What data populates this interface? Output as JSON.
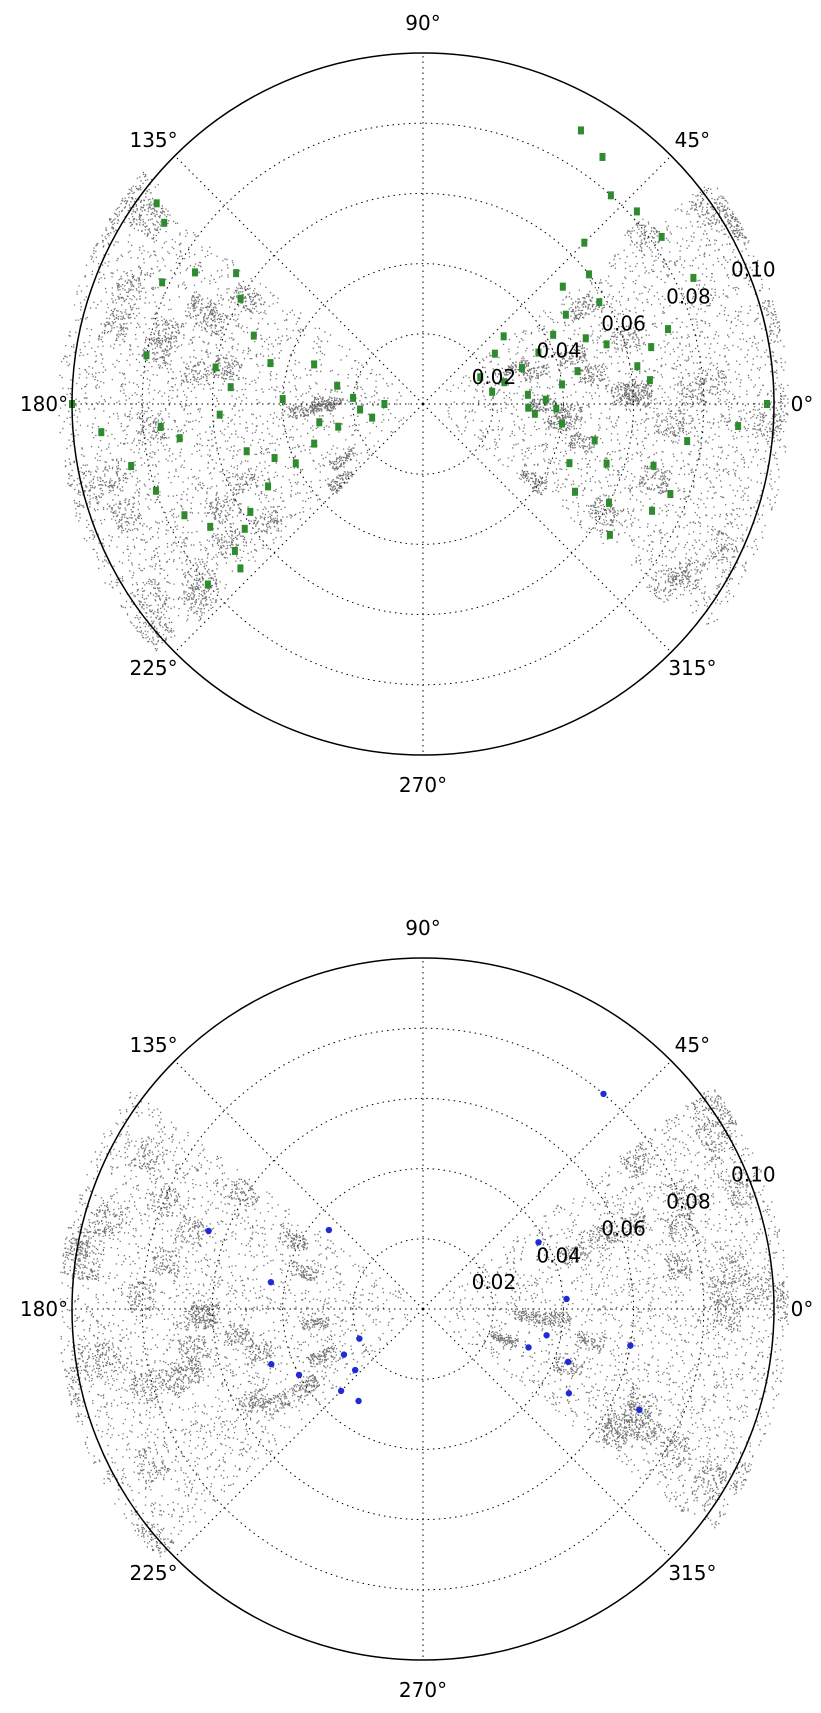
{
  "chart_data": [
    {
      "type": "scatter",
      "projection": "polar",
      "title": "",
      "theta_unit": "deg",
      "theta_ticks": [
        0,
        45,
        90,
        135,
        180,
        225,
        270,
        315
      ],
      "theta_tick_labels": [
        "0°",
        "45°",
        "90°",
        "135°",
        "180°",
        "225°",
        "270°",
        "315°"
      ],
      "r_ticks": [
        0.02,
        0.04,
        0.06,
        0.08,
        0.1
      ],
      "r_tick_labels": [
        "0.02",
        "0.04",
        "0.06",
        "0.08",
        "0.10"
      ],
      "rlim": [
        0,
        0.1
      ],
      "grid": true,
      "background": {
        "color": "#000000",
        "sectors": [
          {
            "theta_range": [
              -38,
              38
            ],
            "r_range": [
              0.003,
              0.106
            ]
          },
          {
            "theta_range": [
              143,
              223
            ],
            "r_range": [
              0.003,
              0.106
            ]
          }
        ]
      },
      "series": [
        {
          "color": "#2e8b2e",
          "marker": "square",
          "points": [
            [
              60,
              0.09
            ],
            [
              54,
              0.087
            ],
            [
              48,
              0.08
            ],
            [
              42,
              0.082
            ],
            [
              35,
              0.083
            ],
            [
              25,
              0.085
            ],
            [
              17,
              0.073
            ],
            [
              14,
              0.067
            ],
            [
              10,
              0.062
            ],
            [
              6,
              0.065
            ],
            [
              45,
              0.065
            ],
            [
              38,
              0.06
            ],
            [
              30,
              0.058
            ],
            [
              22,
              0.05
            ],
            [
              18,
              0.055
            ],
            [
              12,
              0.045
            ],
            [
              8,
              0.04
            ],
            [
              5,
              0.03
            ],
            [
              2,
              0.035
            ],
            [
              -2,
              0.038
            ],
            [
              28,
              0.042
            ],
            [
              32,
              0.048
            ],
            [
              40,
              0.052
            ],
            [
              24,
              0.036
            ],
            [
              20,
              0.03
            ],
            [
              15,
              0.024
            ],
            [
              10,
              0.02
            ],
            [
              25,
              0.018
            ],
            [
              35,
              0.025
            ],
            [
              40,
              0.03
            ],
            [
              -5,
              0.032
            ],
            [
              -8,
              0.04
            ],
            [
              -12,
              0.05
            ],
            [
              -18,
              0.055
            ],
            [
              -15,
              0.068
            ],
            [
              -20,
              0.075
            ],
            [
              -25,
              0.072
            ],
            [
              -28,
              0.06
            ],
            [
              -22,
              0.045
            ],
            [
              -30,
              0.05
            ],
            [
              -35,
              0.065
            ],
            [
              -8,
              0.076
            ],
            [
              -2,
              0.03
            ],
            [
              -4,
              0.09
            ],
            [
              0,
              0.098
            ],
            [
              160,
              0.033
            ],
            [
              165,
              0.045
            ],
            [
              158,
              0.052
            ],
            [
              150,
              0.06
            ],
            [
              145,
              0.065
            ],
            [
              150,
              0.075
            ],
            [
              155,
              0.082
            ],
            [
              145,
              0.09
            ],
            [
              143,
              0.095
            ],
            [
              170,
              0.06
            ],
            [
              175,
              0.055
            ],
            [
              178,
              0.04
            ],
            [
              183,
              0.058
            ],
            [
              188,
              0.07
            ],
            [
              195,
              0.052
            ],
            [
              200,
              0.045
            ],
            [
              190,
              0.03
            ],
            [
              195,
              0.025
            ],
            [
              200,
              0.033
            ],
            [
              205,
              0.04
            ],
            [
              208,
              0.05
            ],
            [
              212,
              0.058
            ],
            [
              215,
              0.062
            ],
            [
              210,
              0.07
            ],
            [
              205,
              0.075
            ],
            [
              218,
              0.068
            ],
            [
              220,
              0.08
            ],
            [
              222,
              0.07
            ],
            [
              198,
              0.08
            ],
            [
              192,
              0.085
            ],
            [
              185,
              0.075
            ],
            [
              180,
              0.1
            ],
            [
              185,
              0.092
            ],
            [
              170,
              0.08
            ],
            [
              175,
              0.02
            ],
            [
              185,
              0.018
            ],
            [
              195,
              0.015
            ],
            [
              168,
              0.025
            ],
            [
              180,
              0.011
            ]
          ]
        }
      ]
    },
    {
      "type": "scatter",
      "projection": "polar",
      "title": "",
      "theta_unit": "deg",
      "theta_ticks": [
        0,
        45,
        90,
        135,
        180,
        225,
        270,
        315
      ],
      "theta_tick_labels": [
        "0°",
        "45°",
        "90°",
        "135°",
        "180°",
        "225°",
        "270°",
        "315°"
      ],
      "r_ticks": [
        0.02,
        0.04,
        0.06,
        0.08,
        0.1
      ],
      "r_tick_labels": [
        "0.02",
        "0.04",
        "0.06",
        "0.08",
        "0.10"
      ],
      "rlim": [
        0,
        0.1
      ],
      "grid": true,
      "background": {
        "color": "#000000",
        "sectors": [
          {
            "theta_range": [
              -38,
              38
            ],
            "r_range": [
              0.003,
              0.106
            ]
          },
          {
            "theta_range": [
              143,
              223
            ],
            "r_range": [
              0.003,
              0.106
            ]
          }
        ]
      },
      "series": [
        {
          "color": "#1f2bd6",
          "marker": "circle",
          "points": [
            [
              50,
              0.08
            ],
            [
              30,
              0.038
            ],
            [
              4,
              0.041
            ],
            [
              -12,
              0.036
            ],
            [
              -20,
              0.044
            ],
            [
              -20,
              0.032
            ],
            [
              -30,
              0.048
            ],
            [
              -25,
              0.068
            ],
            [
              -10,
              0.06
            ],
            [
              160,
              0.065
            ],
            [
              170,
              0.044
            ],
            [
              200,
              0.046
            ],
            [
              208,
              0.04
            ],
            [
              210,
              0.026
            ],
            [
              205,
              0.02
            ],
            [
              235,
              0.032
            ],
            [
              225,
              0.033
            ],
            [
              222,
              0.026
            ],
            [
              140,
              0.035
            ]
          ]
        }
      ]
    }
  ]
}
